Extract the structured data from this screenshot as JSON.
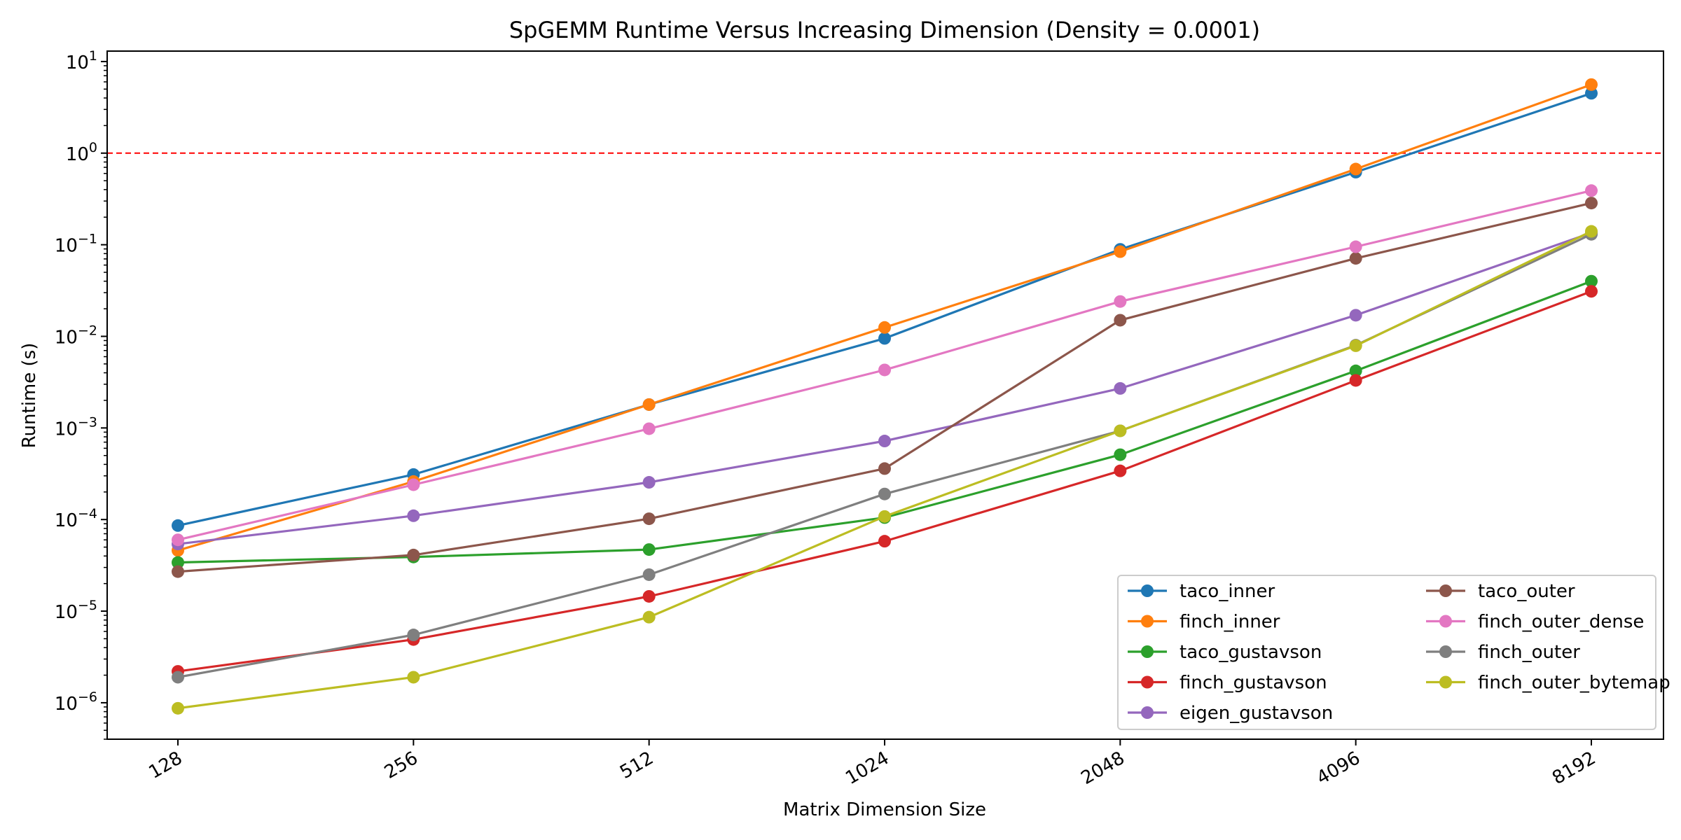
{
  "chart_data": {
    "type": "line",
    "title": "SpGEMM Runtime Versus Increasing Dimension (Density = 0.0001)",
    "xlabel": "Matrix Dimension Size",
    "ylabel": "Runtime (s)",
    "yscale": "log",
    "ylim": [
      4e-07,
      13
    ],
    "categories": [
      "128",
      "256",
      "512",
      "1024",
      "2048",
      "4096",
      "8192"
    ],
    "y_ticks": [
      {
        "value": 1e-06,
        "base": "10",
        "exp": "−6"
      },
      {
        "value": 1e-05,
        "base": "10",
        "exp": "−5"
      },
      {
        "value": 0.0001,
        "base": "10",
        "exp": "−4"
      },
      {
        "value": 0.001,
        "base": "10",
        "exp": "−3"
      },
      {
        "value": 0.01,
        "base": "10",
        "exp": "−2"
      },
      {
        "value": 0.1,
        "base": "10",
        "exp": "−1"
      },
      {
        "value": 1,
        "base": "10",
        "exp": "0"
      },
      {
        "value": 10,
        "base": "10",
        "exp": "1"
      }
    ],
    "reference_line": {
      "value": 1,
      "color": "#ff0000",
      "style": "dashed"
    },
    "grid": false,
    "legend_position": "lower-right",
    "legend_columns": 2,
    "series": [
      {
        "name": "taco_inner",
        "color": "#1f77b4",
        "values": [
          8.6e-05,
          0.00031,
          0.0018,
          0.0095,
          0.089,
          0.62,
          4.5
        ]
      },
      {
        "name": "finch_inner",
        "color": "#ff7f0e",
        "values": [
          4.6e-05,
          0.00026,
          0.0018,
          0.0125,
          0.084,
          0.67,
          5.6
        ]
      },
      {
        "name": "taco_gustavson",
        "color": "#2ca02c",
        "values": [
          3.4e-05,
          3.9e-05,
          4.7e-05,
          0.000105,
          0.00051,
          0.0042,
          0.04
        ]
      },
      {
        "name": "finch_gustavson",
        "color": "#d62728",
        "values": [
          2.2e-06,
          4.9e-06,
          1.45e-05,
          5.8e-05,
          0.00034,
          0.0033,
          0.031
        ]
      },
      {
        "name": "eigen_gustavson",
        "color": "#9467bd",
        "values": [
          5.4e-05,
          0.00011,
          0.000255,
          0.00072,
          0.0027,
          0.017,
          0.135
        ]
      },
      {
        "name": "taco_outer",
        "color": "#8c564b",
        "values": [
          2.7e-05,
          4.1e-05,
          0.000102,
          0.00036,
          0.015,
          0.071,
          0.285
        ]
      },
      {
        "name": "finch_outer_dense",
        "color": "#e377c2",
        "values": [
          6e-05,
          0.00024,
          0.00098,
          0.0043,
          0.024,
          0.095,
          0.39
        ]
      },
      {
        "name": "finch_outer",
        "color": "#7f7f7f",
        "values": [
          1.9e-06,
          5.5e-06,
          2.5e-05,
          0.00019,
          0.00093,
          0.008,
          0.13
        ]
      },
      {
        "name": "finch_outer_bytemap",
        "color": "#bcbd22",
        "values": [
          8.7e-07,
          1.9e-06,
          8.6e-06,
          0.000108,
          0.00093,
          0.0079,
          0.14
        ]
      }
    ]
  }
}
